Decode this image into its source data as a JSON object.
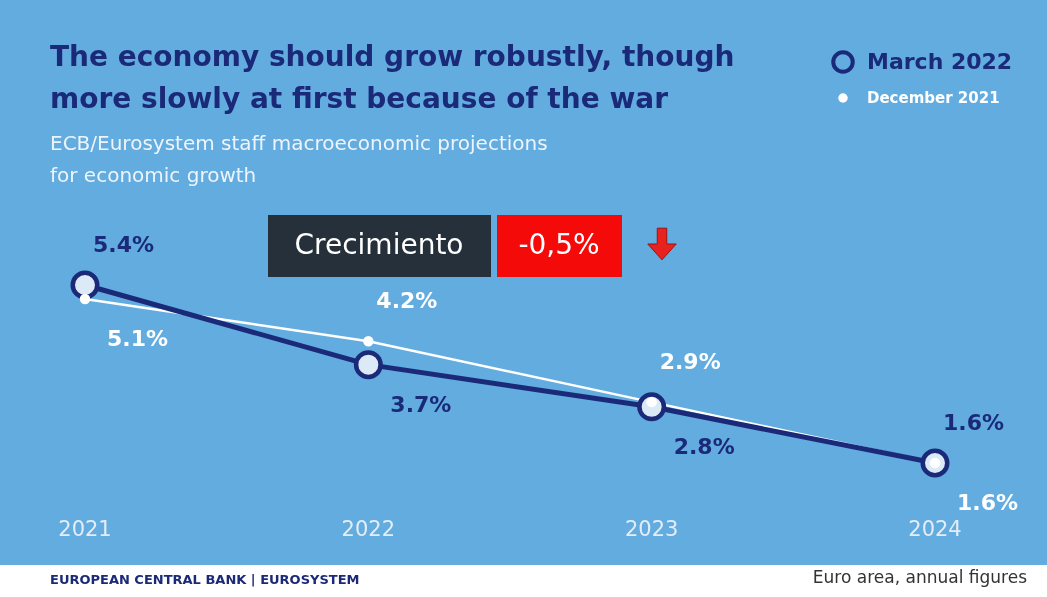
{
  "chart_data": {
    "type": "line",
    "title": "The economy should grow robustly, though\nmore slowly at first because of the war",
    "subtitle": "ECB/Eurosystem staff macroeconomic projections\nfor economic growth",
    "categories": [
      "2021",
      "2022",
      "2023",
      "2024"
    ],
    "series": [
      {
        "name": "March 2022",
        "color": "#1b2a78",
        "values": [
          5.4,
          3.7,
          2.8,
          1.6
        ],
        "value_labels": [
          "5.4%",
          "3.7%",
          "2.8%",
          "1.6%"
        ]
      },
      {
        "name": "December 2021",
        "color": "#ffffff",
        "values": [
          5.1,
          4.2,
          2.9,
          1.6
        ],
        "value_labels": [
          "5.1%",
          "4.2%",
          "2.9%",
          "1.6%"
        ]
      }
    ],
    "marker": "circle",
    "legend": "top right",
    "annotations": [
      "Crecimiento",
      "-0,5%",
      "EUROPEAN CENTRAL BANK | EUROSYSTEM",
      "Euro area, annual figures"
    ]
  }
}
